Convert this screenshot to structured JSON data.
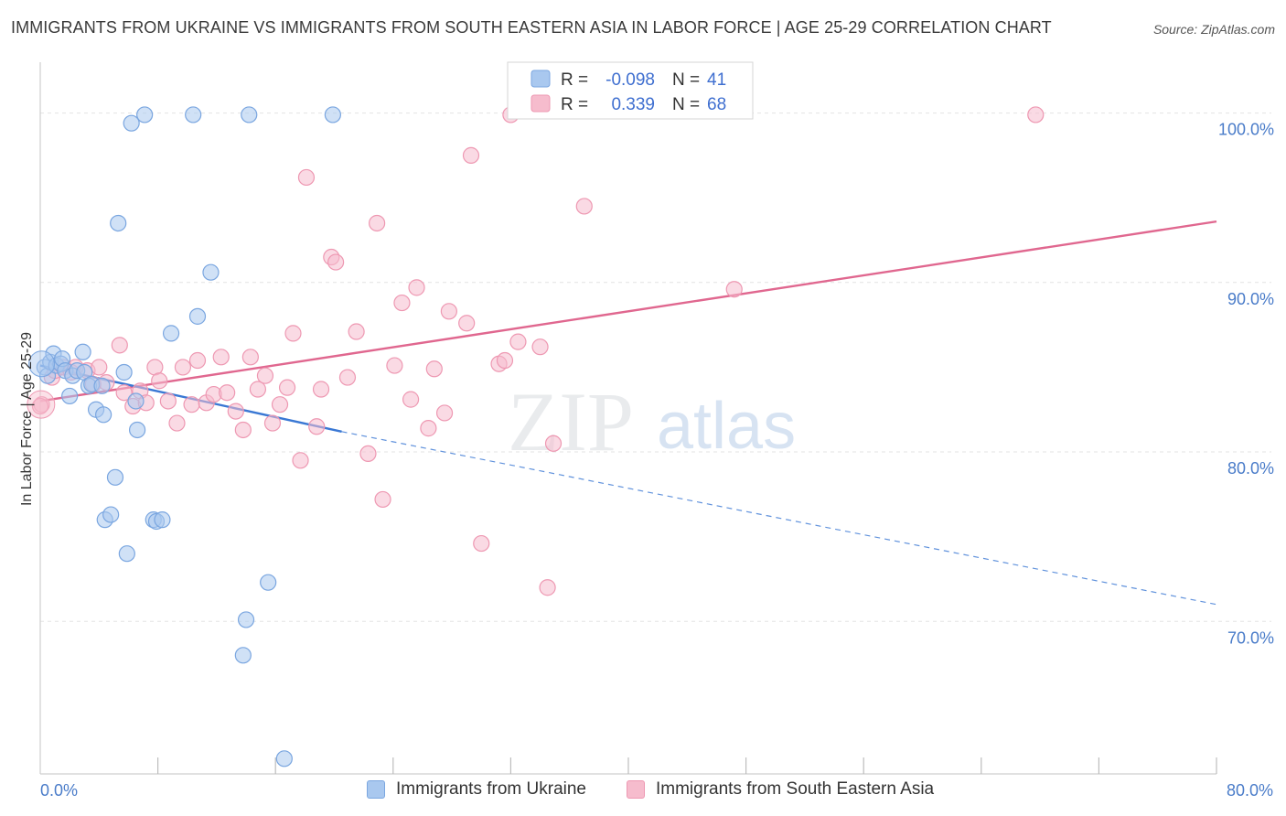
{
  "header": {
    "title": "IMMIGRANTS FROM UKRAINE VS IMMIGRANTS FROM SOUTH EASTERN ASIA IN LABOR FORCE | AGE 25-29 CORRELATION CHART",
    "source": "Source: ZipAtlas.com"
  },
  "watermark": {
    "zip": "ZIP",
    "atlas": "atlas"
  },
  "legend_box": {
    "rows": [
      {
        "r_label": "R =",
        "r_value": "-0.098",
        "n_label": "N =",
        "n_value": "41"
      },
      {
        "r_label": "R =",
        "r_value": "0.339",
        "n_label": "N =",
        "n_value": "68"
      }
    ]
  },
  "bottom_legend": {
    "ukraine": "Immigrants from Ukraine",
    "sea": "Immigrants from South Eastern Asia"
  },
  "chart_data": {
    "type": "scatter",
    "title": "IMMIGRANTS FROM UKRAINE VS IMMIGRANTS FROM SOUTH EASTERN ASIA IN LABOR FORCE | AGE 25-29 CORRELATION CHART",
    "xlabel": "",
    "ylabel": "In Labor Force | Age 25-29",
    "xlim": [
      0,
      80
    ],
    "ylim": [
      61,
      103
    ],
    "x_tick_labels": [
      "0.0%",
      "80.0%"
    ],
    "y_ticks": [
      70,
      80,
      90,
      100
    ],
    "y_tick_labels": [
      "70.0%",
      "80.0%",
      "90.0%",
      "100.0%"
    ],
    "grid": true,
    "legend_position": "top-center",
    "colors": {
      "ukraine_fill": "#a9c8ef",
      "ukraine_stroke": "#7aa6e0",
      "ukraine_line": "#3a78d4",
      "sea_fill": "#f6bccd",
      "sea_stroke": "#ee98b2",
      "sea_line": "#e0678f",
      "tick": "#4a7cc9"
    },
    "series": [
      {
        "name": "Immigrants from Ukraine",
        "r": -0.098,
        "n": 41,
        "points": [
          [
            0.3,
            85.0
          ],
          [
            0.5,
            84.5
          ],
          [
            0.7,
            85.3
          ],
          [
            0.9,
            85.8
          ],
          [
            1.1,
            85.1
          ],
          [
            1.4,
            85.2
          ],
          [
            1.5,
            85.5
          ],
          [
            1.7,
            84.8
          ],
          [
            2.0,
            83.3
          ],
          [
            2.2,
            84.5
          ],
          [
            2.5,
            84.8
          ],
          [
            2.9,
            85.9
          ],
          [
            3.0,
            84.7
          ],
          [
            3.3,
            83.9
          ],
          [
            3.5,
            84.0
          ],
          [
            3.8,
            82.5
          ],
          [
            4.2,
            83.9
          ],
          [
            4.3,
            82.2
          ],
          [
            4.4,
            76.0
          ],
          [
            4.8,
            76.3
          ],
          [
            5.1,
            78.5
          ],
          [
            5.3,
            93.5
          ],
          [
            5.7,
            84.7
          ],
          [
            5.9,
            74.0
          ],
          [
            6.2,
            99.4
          ],
          [
            6.5,
            83.0
          ],
          [
            6.6,
            81.3
          ],
          [
            7.1,
            99.9
          ],
          [
            7.7,
            76.0
          ],
          [
            7.9,
            75.9
          ],
          [
            8.3,
            76.0
          ],
          [
            8.9,
            87.0
          ],
          [
            10.4,
            99.9
          ],
          [
            10.7,
            88.0
          ],
          [
            11.6,
            90.6
          ],
          [
            13.8,
            68.0
          ],
          [
            14.0,
            70.1
          ],
          [
            14.2,
            99.9
          ],
          [
            15.5,
            72.3
          ],
          [
            16.6,
            61.9
          ],
          [
            19.9,
            99.9
          ]
        ],
        "trend_solid": [
          [
            0,
            85.1
          ],
          [
            20.5,
            81.2
          ]
        ],
        "trend_dashed": [
          [
            20.5,
            81.2
          ],
          [
            80,
            71.0
          ]
        ]
      },
      {
        "name": "Immigrants from South Eastern Asia",
        "r": 0.339,
        "n": 68,
        "points": [
          [
            0.1,
            82.8
          ],
          [
            0.8,
            84.4
          ],
          [
            1.0,
            84.8
          ],
          [
            1.6,
            85.0
          ],
          [
            2.1,
            84.7
          ],
          [
            2.4,
            85.0
          ],
          [
            3.2,
            84.8
          ],
          [
            3.6,
            84.0
          ],
          [
            4.0,
            85.0
          ],
          [
            4.5,
            84.1
          ],
          [
            5.4,
            86.3
          ],
          [
            5.7,
            83.5
          ],
          [
            6.3,
            82.7
          ],
          [
            6.8,
            83.6
          ],
          [
            7.2,
            82.9
          ],
          [
            7.8,
            85.0
          ],
          [
            8.1,
            84.2
          ],
          [
            8.7,
            83.0
          ],
          [
            9.3,
            81.7
          ],
          [
            9.7,
            85.0
          ],
          [
            10.3,
            82.8
          ],
          [
            10.7,
            85.4
          ],
          [
            11.3,
            82.9
          ],
          [
            11.8,
            83.4
          ],
          [
            12.3,
            85.6
          ],
          [
            12.7,
            83.5
          ],
          [
            13.3,
            82.4
          ],
          [
            13.8,
            81.3
          ],
          [
            14.3,
            85.6
          ],
          [
            14.8,
            83.7
          ],
          [
            15.3,
            84.5
          ],
          [
            15.8,
            81.7
          ],
          [
            16.3,
            82.8
          ],
          [
            16.8,
            83.8
          ],
          [
            17.2,
            87.0
          ],
          [
            17.7,
            79.5
          ],
          [
            18.1,
            96.2
          ],
          [
            18.8,
            81.5
          ],
          [
            19.1,
            83.7
          ],
          [
            19.8,
            91.5
          ],
          [
            20.1,
            91.2
          ],
          [
            20.9,
            84.4
          ],
          [
            21.5,
            87.1
          ],
          [
            22.3,
            79.9
          ],
          [
            22.9,
            93.5
          ],
          [
            23.3,
            77.2
          ],
          [
            24.1,
            85.1
          ],
          [
            24.6,
            88.8
          ],
          [
            25.2,
            83.1
          ],
          [
            25.6,
            89.7
          ],
          [
            26.4,
            81.4
          ],
          [
            26.8,
            84.9
          ],
          [
            27.5,
            82.3
          ],
          [
            27.8,
            88.3
          ],
          [
            29.0,
            87.6
          ],
          [
            29.3,
            97.5
          ],
          [
            30.0,
            74.6
          ],
          [
            31.2,
            85.2
          ],
          [
            31.6,
            85.4
          ],
          [
            32.0,
            99.9
          ],
          [
            32.5,
            86.5
          ],
          [
            34.0,
            86.2
          ],
          [
            34.5,
            72.0
          ],
          [
            34.9,
            80.5
          ],
          [
            37.0,
            94.5
          ],
          [
            47.2,
            89.6
          ],
          [
            67.7,
            99.9
          ],
          [
            0.0,
            82.7
          ]
        ],
        "trend": [
          [
            0,
            83.0
          ],
          [
            80,
            93.6
          ]
        ]
      }
    ]
  }
}
